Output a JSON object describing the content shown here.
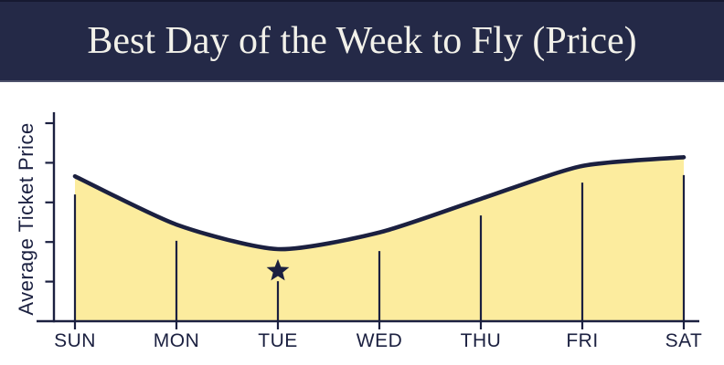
{
  "header": {
    "title": "Best Day of the Week to Fly (Price)"
  },
  "colors": {
    "navy": "#1b2040",
    "banner_bg": "#242947",
    "banner_top_border": "#161931",
    "banner_bottom_border": "#4d516b",
    "area_fill": "#fcec9e",
    "title_text": "#f2f1ea"
  },
  "chart_data": {
    "type": "area",
    "title": "Best Day of the Week to Fly (Price)",
    "xlabel": "",
    "ylabel": "Average Ticket Price",
    "categories": [
      "SUN",
      "MON",
      "TUE",
      "WED",
      "THU",
      "FRI",
      "SAT"
    ],
    "values": [
      3.66,
      2.44,
      1.82,
      2.24,
      3.09,
      3.92,
      4.14
    ],
    "dropline_values": [
      3.2,
      2.03,
      1.01,
      1.77,
      2.67,
      3.5,
      3.69
    ],
    "y_axis_ticks": [
      1,
      2,
      3,
      4,
      5
    ],
    "y_axis_tick_labels_visible": false,
    "ylim": [
      0,
      5.3
    ],
    "grid": false,
    "legend": false,
    "units": "relative price (axis unlabeled)",
    "annotations": [
      {
        "type": "star",
        "category": "TUE",
        "value": 1.27,
        "meaning": "best (cheapest) day to fly"
      }
    ]
  }
}
